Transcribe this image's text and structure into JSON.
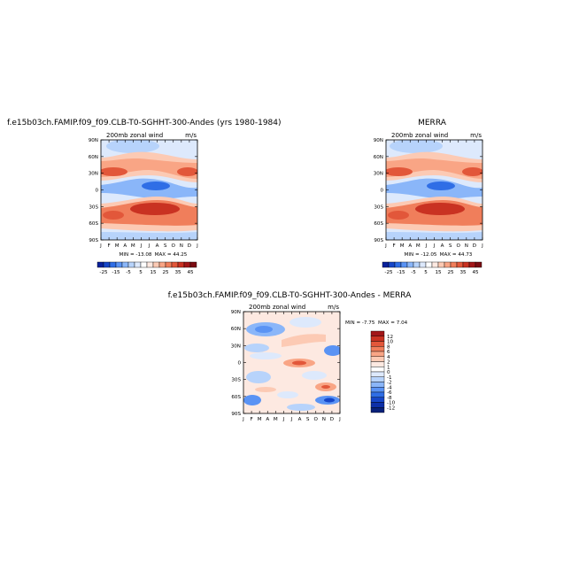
{
  "page": {
    "title_left": "f.e15b03ch.FAMIP.f09_f09.CLB-T0-SGHHT-300-Andes (yrs 1980-1984)",
    "title_right": "MERRA",
    "title_diff": "f.e15b03ch.FAMIP.f09_f09.CLB-T0-SGHHT-300-Andes - MERRA"
  },
  "colors": {
    "full_scale": [
      "#08219b",
      "#1646c8",
      "#2f6ee6",
      "#5a93f4",
      "#8ab6f9",
      "#b7d3fb",
      "#dde9fc",
      "#ffffff",
      "#fde9e1",
      "#fccab4",
      "#f9a585",
      "#f07e5b",
      "#e2573a",
      "#c93222",
      "#a21618",
      "#7b0c12"
    ],
    "diff_scale": [
      "#08217a",
      "#0d2fa8",
      "#1646c8",
      "#2f6ee6",
      "#5a93f4",
      "#8ab6f9",
      "#b7d3fb",
      "#dde9fc",
      "#ffffff",
      "#fde9e1",
      "#fccab4",
      "#f9a585",
      "#f07e5b",
      "#e2573a",
      "#c93222",
      "#a21618"
    ]
  },
  "chart_data": [
    {
      "type": "heatmap",
      "title": "f.e15b03ch.FAMIP.f09_f09.CLB-T0-SGHHT-300-Andes (yrs 1980-1984)",
      "subtitle_left": "200mb zonal wind",
      "subtitle_right": "m/s",
      "x_ticks": [
        "J",
        "F",
        "M",
        "A",
        "M",
        "J",
        "J",
        "A",
        "S",
        "O",
        "N",
        "D",
        "J"
      ],
      "y_ticks": [
        "90N",
        "60N",
        "30N",
        "0",
        "30S",
        "60S",
        "90S"
      ],
      "y_values": [
        90,
        60,
        30,
        0,
        -30,
        -60,
        -90
      ],
      "min_label": "MIN = -13.08",
      "max_label": "MAX = 44.25",
      "min": -13.08,
      "max": 44.25,
      "colorbar_labels": [
        "-25",
        "-15",
        "-5",
        "5",
        "15",
        "25",
        "35",
        "45"
      ],
      "colorbar_levels": [
        -25,
        -20,
        -15,
        -10,
        -5,
        0,
        5,
        10,
        15,
        20,
        25,
        30,
        35,
        40,
        45
      ]
    },
    {
      "type": "heatmap",
      "title": "MERRA",
      "subtitle_left": "200mb zonal wind",
      "subtitle_right": "m/s",
      "x_ticks": [
        "J",
        "F",
        "M",
        "A",
        "M",
        "J",
        "J",
        "A",
        "S",
        "O",
        "N",
        "D",
        "J"
      ],
      "y_ticks": [
        "90N",
        "60N",
        "30N",
        "0",
        "30S",
        "60S",
        "90S"
      ],
      "y_values": [
        90,
        60,
        30,
        0,
        -30,
        -60,
        -90
      ],
      "min_label": "MIN = -12.05",
      "max_label": "MAX = 44.73",
      "min": -12.05,
      "max": 44.73,
      "colorbar_labels": [
        "-25",
        "-15",
        "-5",
        "5",
        "15",
        "25",
        "35",
        "45"
      ],
      "colorbar_levels": [
        -25,
        -20,
        -15,
        -10,
        -5,
        0,
        5,
        10,
        15,
        20,
        25,
        30,
        35,
        40,
        45
      ]
    },
    {
      "type": "heatmap",
      "title": "f.e15b03ch.FAMIP.f09_f09.CLB-T0-SGHHT-300-Andes - MERRA",
      "subtitle_left": "200mb zonal wind",
      "subtitle_right": "m/s",
      "x_ticks": [
        "J",
        "F",
        "M",
        "A",
        "M",
        "J",
        "J",
        "A",
        "S",
        "O",
        "N",
        "D",
        "J"
      ],
      "y_ticks": [
        "90N",
        "60N",
        "30N",
        "0",
        "30S",
        "60S",
        "90S"
      ],
      "y_values": [
        90,
        60,
        30,
        0,
        -30,
        -60,
        -90
      ],
      "min_label": "MIN = -7.75",
      "max_label": "MAX = 7.04",
      "min": -7.75,
      "max": 7.04,
      "colorbar_labels": [
        "12",
        "10",
        "8",
        "6",
        "4",
        "2",
        "1",
        "0",
        "-1",
        "-2",
        "-4",
        "-6",
        "-8",
        "-10",
        "-12"
      ],
      "colorbar_levels": [
        12,
        10,
        8,
        6,
        4,
        2,
        1,
        0,
        -1,
        -2,
        -4,
        -6,
        -8,
        -10,
        -12
      ]
    }
  ]
}
